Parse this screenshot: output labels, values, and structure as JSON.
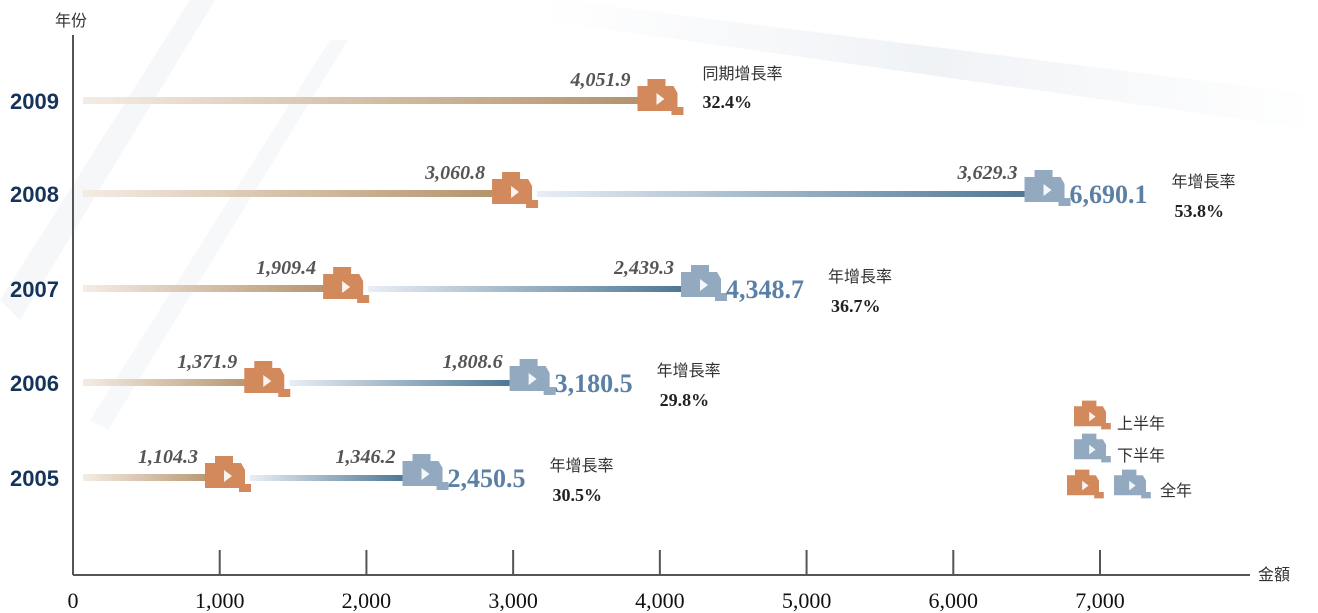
{
  "chart_data": {
    "type": "bar",
    "orientation": "horizontal",
    "ylabel": "年份",
    "xlabel": "金額",
    "xlim": [
      0,
      8000
    ],
    "xticks": [
      "0",
      "1,000",
      "2,000",
      "3,000",
      "4,000",
      "5,000",
      "6,000",
      "7,000"
    ],
    "categories": [
      "2009",
      "2008",
      "2007",
      "2006",
      "2005"
    ],
    "series": [
      {
        "name": "上半年",
        "values": [
          4051.9,
          3060.8,
          1909.4,
          1371.9,
          1104.3
        ],
        "labels": [
          "4,051.9",
          "3,060.8",
          "1,909.4",
          "1,371.9",
          "1,104.3"
        ]
      },
      {
        "name": "下半年",
        "values": [
          null,
          3629.3,
          2439.3,
          1808.6,
          1346.2
        ],
        "labels": [
          "",
          "3,629.3",
          "2,439.3",
          "1,808.6",
          "1,346.2"
        ]
      },
      {
        "name": "全年",
        "values": [
          null,
          6690.1,
          4348.7,
          3180.5,
          2450.5
        ],
        "labels": [
          "",
          "6,690.1",
          "4,348.7",
          "3,180.5",
          "2,450.5"
        ]
      }
    ],
    "growth": [
      {
        "title": "同期增長率",
        "value": "32.4%"
      },
      {
        "title": "年增長率",
        "value": "53.8%"
      },
      {
        "title": "年增長率",
        "value": "36.7%"
      },
      {
        "title": "年增長率",
        "value": "29.8%"
      },
      {
        "title": "年增長率",
        "value": "30.5%"
      }
    ],
    "legend_position": "bottom-right",
    "colors": {
      "first_half": "#d2895c",
      "second_half": "#93a9c0",
      "total_text": "#5b80a6",
      "year_text": "#16335a"
    }
  }
}
